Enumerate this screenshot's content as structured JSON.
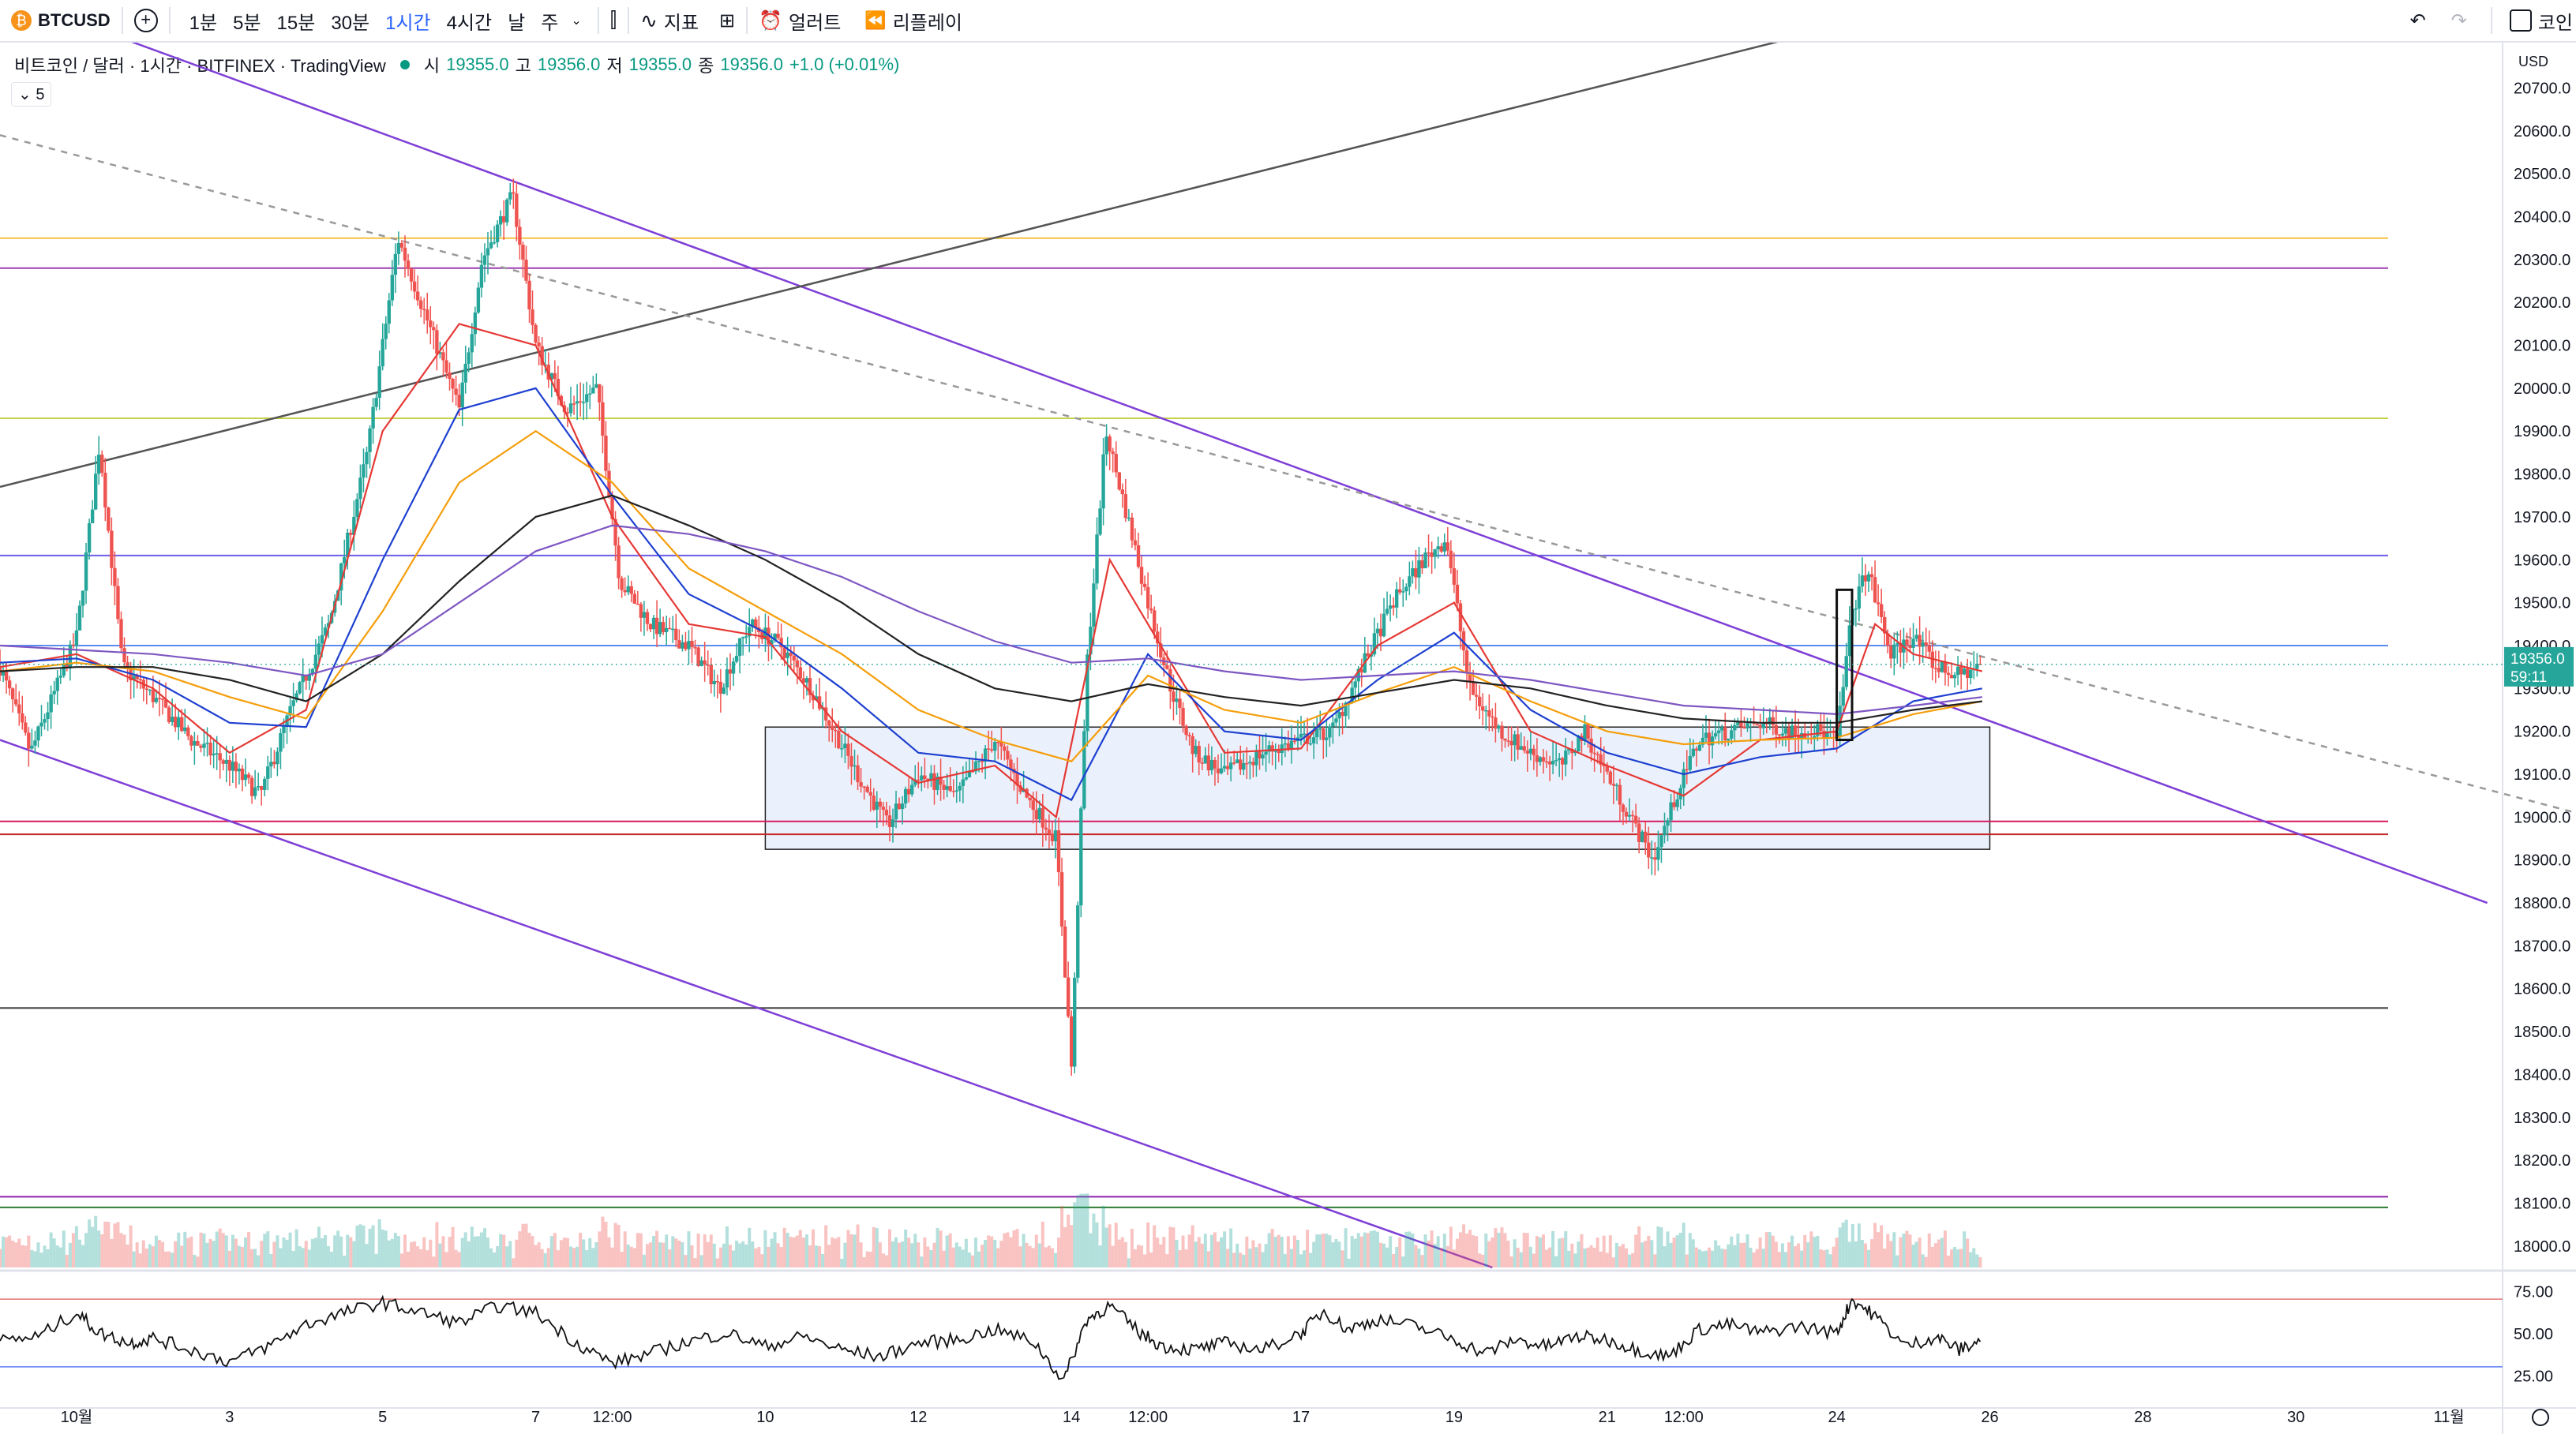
{
  "toolbar": {
    "symbol": "BTCUSD",
    "intervals": [
      "1분",
      "5분",
      "15분",
      "30분",
      "1시간",
      "4시간",
      "날",
      "주"
    ],
    "active_interval": "1시간",
    "indicators_label": "지표",
    "alert_label": "얼러트",
    "replay_label": "리플레이",
    "right_label": "코인"
  },
  "legend": {
    "title": "비트코인 / 달러 · 1시간 · BITFINEX · TradingView",
    "o_label": "시",
    "o": "19355.0",
    "h_label": "고",
    "h": "19356.0",
    "l_label": "저",
    "l": "19355.0",
    "c_label": "종",
    "c": "19356.0",
    "change": "+1.0 (+0.01%)",
    "collapse": "5"
  },
  "price_axis": {
    "currency": "USD",
    "last_price": "19356.0",
    "countdown": "59:11"
  },
  "colors": {
    "up": "#26a69a",
    "down": "#ef5350",
    "ma_red": "#e53935",
    "ma_blue": "#1e40d0",
    "ma_orange": "#f59e0b",
    "ma_black": "#222222",
    "ma_purple": "#7e57c2",
    "channel": "#7e3fd6",
    "zone_fill": "#e8eefb",
    "rsi": "#111111"
  },
  "chart_data": {
    "type": "candlestick",
    "ylim": [
      17950,
      20780
    ],
    "yticks": [
      18000,
      18100,
      18200,
      18300,
      18400,
      18500,
      18600,
      18700,
      18800,
      18900,
      19000,
      19100,
      19200,
      19300,
      19400,
      19500,
      19600,
      19700,
      19800,
      19900,
      20000,
      20100,
      20200,
      20300,
      20400,
      20500,
      20600,
      20700
    ],
    "xlim": [
      0,
      32.7
    ],
    "xticks": [
      {
        "x": 1,
        "label": "10월"
      },
      {
        "x": 3,
        "label": "3"
      },
      {
        "x": 5,
        "label": "5"
      },
      {
        "x": 7,
        "label": "7"
      },
      {
        "x": 8,
        "label": "12:00"
      },
      {
        "x": 10,
        "label": "10"
      },
      {
        "x": 12,
        "label": "12"
      },
      {
        "x": 14,
        "label": "14"
      },
      {
        "x": 15,
        "label": "12:00"
      },
      {
        "x": 17,
        "label": "17"
      },
      {
        "x": 19,
        "label": "19"
      },
      {
        "x": 21,
        "label": "21"
      },
      {
        "x": 22,
        "label": "12:00"
      },
      {
        "x": 24,
        "label": "24"
      },
      {
        "x": 26,
        "label": "26"
      },
      {
        "x": 28,
        "label": "28"
      },
      {
        "x": 30,
        "label": "30"
      },
      {
        "x": 32,
        "label": "11월"
      }
    ],
    "price_path": [
      [
        0,
        19350
      ],
      [
        0.4,
        19150
      ],
      [
        1,
        19420
      ],
      [
        1.3,
        19870
      ],
      [
        1.6,
        19350
      ],
      [
        2,
        19280
      ],
      [
        2.5,
        19180
      ],
      [
        3,
        19120
      ],
      [
        3.4,
        19050
      ],
      [
        3.8,
        19250
      ],
      [
        4.3,
        19450
      ],
      [
        4.8,
        19850
      ],
      [
        5.2,
        20350
      ],
      [
        5.6,
        20150
      ],
      [
        6,
        19950
      ],
      [
        6.3,
        20300
      ],
      [
        6.7,
        20450
      ],
      [
        7,
        20100
      ],
      [
        7.4,
        19950
      ],
      [
        7.8,
        20000
      ],
      [
        8.1,
        19550
      ],
      [
        8.5,
        19450
      ],
      [
        9,
        19400
      ],
      [
        9.4,
        19300
      ],
      [
        9.8,
        19450
      ],
      [
        10.2,
        19400
      ],
      [
        10.6,
        19300
      ],
      [
        11.2,
        19100
      ],
      [
        11.6,
        18980
      ],
      [
        12,
        19100
      ],
      [
        12.5,
        19050
      ],
      [
        13,
        19180
      ],
      [
        13.4,
        19050
      ],
      [
        13.8,
        18950
      ],
      [
        14,
        18420
      ],
      [
        14.2,
        19350
      ],
      [
        14.45,
        19900
      ],
      [
        14.8,
        19650
      ],
      [
        15,
        19500
      ],
      [
        15.3,
        19300
      ],
      [
        15.6,
        19150
      ],
      [
        16,
        19100
      ],
      [
        16.5,
        19150
      ],
      [
        17,
        19180
      ],
      [
        17.4,
        19200
      ],
      [
        17.8,
        19350
      ],
      [
        18.2,
        19500
      ],
      [
        18.6,
        19600
      ],
      [
        18.9,
        19650
      ],
      [
        19.2,
        19300
      ],
      [
        19.6,
        19200
      ],
      [
        20,
        19150
      ],
      [
        20.4,
        19120
      ],
      [
        20.7,
        19200
      ],
      [
        21,
        19100
      ],
      [
        21.3,
        19000
      ],
      [
        21.6,
        18900
      ],
      [
        21.9,
        19050
      ],
      [
        22.2,
        19180
      ],
      [
        22.6,
        19200
      ],
      [
        23,
        19220
      ],
      [
        23.4,
        19200
      ],
      [
        23.8,
        19200
      ],
      [
        24,
        19180
      ],
      [
        24.2,
        19480
      ],
      [
        24.4,
        19580
      ],
      [
        24.7,
        19380
      ],
      [
        25,
        19420
      ],
      [
        25.3,
        19350
      ],
      [
        25.6,
        19330
      ],
      [
        25.9,
        19356
      ]
    ],
    "moving_averages": [
      {
        "color": "#e53935",
        "points": [
          [
            0,
            19350
          ],
          [
            1,
            19380
          ],
          [
            2,
            19300
          ],
          [
            3,
            19150
          ],
          [
            4,
            19250
          ],
          [
            5,
            19900
          ],
          [
            6,
            20150
          ],
          [
            7,
            20100
          ],
          [
            8,
            19700
          ],
          [
            9,
            19450
          ],
          [
            10,
            19420
          ],
          [
            11,
            19200
          ],
          [
            12,
            19080
          ],
          [
            13,
            19120
          ],
          [
            13.8,
            19000
          ],
          [
            14.5,
            19600
          ],
          [
            15,
            19450
          ],
          [
            16,
            19150
          ],
          [
            17,
            19160
          ],
          [
            18,
            19400
          ],
          [
            19,
            19500
          ],
          [
            20,
            19200
          ],
          [
            21,
            19120
          ],
          [
            22,
            19050
          ],
          [
            23,
            19180
          ],
          [
            24,
            19200
          ],
          [
            24.5,
            19450
          ],
          [
            25,
            19380
          ],
          [
            25.9,
            19340
          ]
        ]
      },
      {
        "color": "#1e40d0",
        "points": [
          [
            0,
            19360
          ],
          [
            1,
            19370
          ],
          [
            2,
            19320
          ],
          [
            3,
            19220
          ],
          [
            4,
            19210
          ],
          [
            5,
            19600
          ],
          [
            6,
            19950
          ],
          [
            7,
            20000
          ],
          [
            8,
            19750
          ],
          [
            9,
            19520
          ],
          [
            10,
            19430
          ],
          [
            11,
            19300
          ],
          [
            12,
            19150
          ],
          [
            13,
            19130
          ],
          [
            14,
            19040
          ],
          [
            15,
            19380
          ],
          [
            16,
            19200
          ],
          [
            17,
            19180
          ],
          [
            18,
            19320
          ],
          [
            19,
            19430
          ],
          [
            20,
            19250
          ],
          [
            21,
            19150
          ],
          [
            22,
            19100
          ],
          [
            23,
            19140
          ],
          [
            24,
            19160
          ],
          [
            25,
            19270
          ],
          [
            25.9,
            19300
          ]
        ]
      },
      {
        "color": "#f59e0b",
        "points": [
          [
            0,
            19340
          ],
          [
            1,
            19360
          ],
          [
            2,
            19340
          ],
          [
            3,
            19280
          ],
          [
            4,
            19230
          ],
          [
            5,
            19480
          ],
          [
            6,
            19780
          ],
          [
            7,
            19900
          ],
          [
            8,
            19780
          ],
          [
            9,
            19580
          ],
          [
            10,
            19480
          ],
          [
            11,
            19380
          ],
          [
            12,
            19250
          ],
          [
            13,
            19180
          ],
          [
            14,
            19130
          ],
          [
            15,
            19330
          ],
          [
            16,
            19250
          ],
          [
            17,
            19220
          ],
          [
            18,
            19290
          ],
          [
            19,
            19350
          ],
          [
            20,
            19270
          ],
          [
            21,
            19200
          ],
          [
            22,
            19170
          ],
          [
            23,
            19180
          ],
          [
            24,
            19185
          ],
          [
            25,
            19240
          ],
          [
            25.9,
            19270
          ]
        ]
      },
      {
        "color": "#222222",
        "points": [
          [
            0,
            19340
          ],
          [
            1,
            19350
          ],
          [
            2,
            19350
          ],
          [
            3,
            19320
          ],
          [
            4,
            19270
          ],
          [
            5,
            19380
          ],
          [
            6,
            19550
          ],
          [
            7,
            19700
          ],
          [
            8,
            19750
          ],
          [
            9,
            19680
          ],
          [
            10,
            19600
          ],
          [
            11,
            19500
          ],
          [
            12,
            19380
          ],
          [
            13,
            19300
          ],
          [
            14,
            19270
          ],
          [
            15,
            19310
          ],
          [
            16,
            19280
          ],
          [
            17,
            19260
          ],
          [
            18,
            19290
          ],
          [
            19,
            19320
          ],
          [
            20,
            19300
          ],
          [
            21,
            19260
          ],
          [
            22,
            19230
          ],
          [
            23,
            19220
          ],
          [
            24,
            19220
          ],
          [
            25,
            19250
          ],
          [
            25.9,
            19270
          ]
        ]
      },
      {
        "color": "#7e57c2",
        "points": [
          [
            0,
            19400
          ],
          [
            1,
            19390
          ],
          [
            2,
            19380
          ],
          [
            3,
            19360
          ],
          [
            4,
            19330
          ],
          [
            5,
            19380
          ],
          [
            6,
            19500
          ],
          [
            7,
            19620
          ],
          [
            8,
            19680
          ],
          [
            9,
            19660
          ],
          [
            10,
            19620
          ],
          [
            11,
            19560
          ],
          [
            12,
            19480
          ],
          [
            13,
            19410
          ],
          [
            14,
            19360
          ],
          [
            15,
            19370
          ],
          [
            16,
            19340
          ],
          [
            17,
            19320
          ],
          [
            18,
            19330
          ],
          [
            19,
            19340
          ],
          [
            20,
            19320
          ],
          [
            21,
            19290
          ],
          [
            22,
            19260
          ],
          [
            23,
            19250
          ],
          [
            24,
            19240
          ],
          [
            25,
            19260
          ],
          [
            25.9,
            19280
          ]
        ]
      }
    ],
    "horizontal_levels": [
      {
        "price": 20350,
        "color": "#f5c242"
      },
      {
        "price": 20280,
        "color": "#9c3fb0"
      },
      {
        "price": 19930,
        "color": "#c5d24a"
      },
      {
        "price": 19610,
        "color": "#6c5ce7"
      },
      {
        "price": 19400,
        "color": "#5b8def"
      },
      {
        "price": 18990,
        "color": "#d81b60"
      },
      {
        "price": 18960,
        "color": "#c62828"
      },
      {
        "price": 18555,
        "color": "#444444"
      },
      {
        "price": 18115,
        "color": "#8e24aa"
      },
      {
        "price": 18090,
        "color": "#2e7d32"
      }
    ],
    "trend_lines": [
      {
        "from": [
          0,
          20920
        ],
        "to": [
          32.5,
          18800
        ],
        "color": "#7e3fd6",
        "dash": false
      },
      {
        "from": [
          0,
          19180
        ],
        "to": [
          19.5,
          17950
        ],
        "color": "#7e3fd6",
        "dash": false
      },
      {
        "from": [
          0,
          19770
        ],
        "to": [
          23.5,
          20820
        ],
        "color": "#555555",
        "dash": false
      },
      {
        "from": [
          0,
          20590
        ],
        "to": [
          34.3,
          18980
        ],
        "color": "#999999",
        "dash": true
      }
    ],
    "zones": [
      {
        "x0": 10,
        "x1": 26,
        "y0": 18925,
        "y1": 19210
      }
    ],
    "marker_rect": {
      "x0": 24.0,
      "x1": 24.2,
      "y0": 19180,
      "y1": 19530
    },
    "rsi": {
      "ylim": [
        15,
        85
      ],
      "levels": [
        70,
        30
      ],
      "ticks": [
        75,
        50,
        25
      ],
      "points": [
        [
          0,
          45
        ],
        [
          0.5,
          48
        ],
        [
          1,
          62
        ],
        [
          1.3,
          50
        ],
        [
          1.7,
          44
        ],
        [
          2,
          47
        ],
        [
          2.5,
          40
        ],
        [
          3,
          33
        ],
        [
          3.5,
          42
        ],
        [
          4,
          55
        ],
        [
          4.5,
          62
        ],
        [
          5,
          68
        ],
        [
          5.5,
          62
        ],
        [
          6,
          56
        ],
        [
          6.5,
          66
        ],
        [
          7,
          62
        ],
        [
          7.5,
          45
        ],
        [
          8,
          32
        ],
        [
          8.5,
          38
        ],
        [
          9,
          45
        ],
        [
          9.5,
          50
        ],
        [
          10,
          42
        ],
        [
          10.5,
          48
        ],
        [
          11,
          40
        ],
        [
          11.5,
          36
        ],
        [
          12,
          44
        ],
        [
          12.5,
          46
        ],
        [
          13,
          52
        ],
        [
          13.5,
          45
        ],
        [
          13.9,
          22
        ],
        [
          14.2,
          58
        ],
        [
          14.5,
          66
        ],
        [
          14.9,
          50
        ],
        [
          15.2,
          42
        ],
        [
          15.6,
          40
        ],
        [
          16,
          44
        ],
        [
          16.5,
          40
        ],
        [
          17,
          50
        ],
        [
          17.3,
          63
        ],
        [
          17.6,
          52
        ],
        [
          18,
          58
        ],
        [
          18.5,
          54
        ],
        [
          19,
          46
        ],
        [
          19.4,
          38
        ],
        [
          19.8,
          46
        ],
        [
          20.2,
          42
        ],
        [
          20.6,
          48
        ],
        [
          21,
          46
        ],
        [
          21.4,
          40
        ],
        [
          21.8,
          36
        ],
        [
          22.2,
          52
        ],
        [
          22.6,
          55
        ],
        [
          23,
          50
        ],
        [
          23.5,
          54
        ],
        [
          24,
          50
        ],
        [
          24.2,
          70
        ],
        [
          24.5,
          60
        ],
        [
          24.9,
          42
        ],
        [
          25.3,
          48
        ],
        [
          25.6,
          40
        ],
        [
          25.9,
          46
        ]
      ]
    },
    "volume": {
      "max": 1
    }
  }
}
